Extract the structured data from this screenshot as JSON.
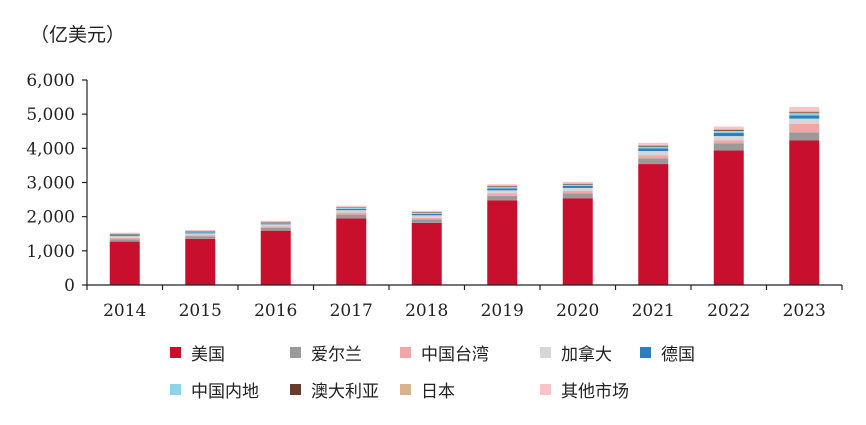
{
  "chart_data": {
    "type": "bar",
    "stacked": true,
    "unit_label": "（亿美元）",
    "categories": [
      "2014",
      "2015",
      "2016",
      "2017",
      "2018",
      "2019",
      "2020",
      "2021",
      "2022",
      "2023"
    ],
    "ylim": [
      0,
      6000
    ],
    "y_ticks": [
      0,
      1000,
      2000,
      3000,
      4000,
      5000,
      6000
    ],
    "y_tick_labels": [
      "0",
      "1,000",
      "2,000",
      "3,000",
      "4,000",
      "5,000",
      "6,000"
    ],
    "series": [
      {
        "name": "美国",
        "color": "#c8102e",
        "values": [
          1270,
          1350,
          1590,
          1950,
          1820,
          2480,
          2540,
          3540,
          3940,
          4230
        ]
      },
      {
        "name": "爱尔兰",
        "color": "#9a9a9a",
        "values": [
          70,
          70,
          80,
          110,
          100,
          130,
          140,
          170,
          210,
          240
        ]
      },
      {
        "name": "中国台湾",
        "color": "#f2a6a6",
        "values": [
          40,
          40,
          45,
          60,
          50,
          70,
          70,
          90,
          80,
          250
        ]
      },
      {
        "name": "加拿大",
        "color": "#d6d6d6",
        "values": [
          50,
          50,
          60,
          70,
          70,
          90,
          90,
          120,
          130,
          150
        ]
      },
      {
        "name": "德国",
        "color": "#2f7ebf",
        "values": [
          30,
          30,
          30,
          40,
          40,
          60,
          60,
          80,
          90,
          90
        ]
      },
      {
        "name": "中国内地",
        "color": "#8fd3ea",
        "values": [
          20,
          20,
          20,
          30,
          30,
          40,
          40,
          50,
          60,
          70
        ]
      },
      {
        "name": "澳大利亚",
        "color": "#6b3a2e",
        "values": [
          15,
          15,
          15,
          15,
          15,
          20,
          20,
          25,
          25,
          25
        ]
      },
      {
        "name": "日本",
        "color": "#d9b38c",
        "values": [
          15,
          15,
          15,
          15,
          15,
          20,
          20,
          25,
          30,
          35
        ]
      },
      {
        "name": "其他市场",
        "color": "#f7c4c8",
        "values": [
          20,
          20,
          25,
          30,
          30,
          40,
          40,
          60,
          75,
          120
        ]
      }
    ],
    "grid": false,
    "legend_position": "bottom"
  }
}
